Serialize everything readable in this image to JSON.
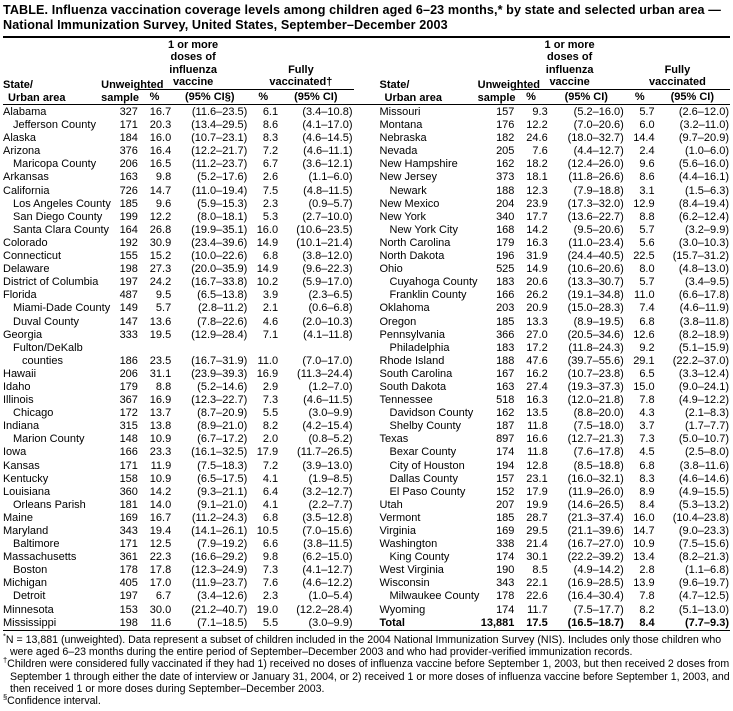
{
  "title": {
    "line1": "TABLE. Influenza vaccination coverage levels among children aged 6–23 months,* by state and selected urban area —",
    "line2": "National Immunization Survey, United States, September–December 2003"
  },
  "header": {
    "state_line1": "State/",
    "state_line2": "Urban area",
    "sample_line1": "Unweighted",
    "sample_line2": "sample",
    "flu_spanner": "1 or more doses of influenza vaccine",
    "fully_spanner_left": "Fully vaccinated†",
    "fully_spanner_right": "Fully vaccinated",
    "pct_label": "%",
    "ci_label_left": "(95% CI§)",
    "ci_label": "(95% CI)"
  },
  "left_rows": [
    {
      "name": "Alabama",
      "indent": 0,
      "sample": "327",
      "pct1": "16.7",
      "ci1": "(11.6–23.5)",
      "pct2": "6.1",
      "ci2": "(3.4–10.8)"
    },
    {
      "name": "Jefferson County",
      "indent": 1,
      "sample": "171",
      "pct1": "20.3",
      "ci1": "(13.4–29.5)",
      "pct2": "8.6",
      "ci2": "(4.1–17.0)"
    },
    {
      "name": "Alaska",
      "indent": 0,
      "sample": "184",
      "pct1": "16.0",
      "ci1": "(10.7–23.1)",
      "pct2": "8.3",
      "ci2": "(4.6–14.5)"
    },
    {
      "name": "Arizona",
      "indent": 0,
      "sample": "376",
      "pct1": "16.4",
      "ci1": "(12.2–21.7)",
      "pct2": "7.2",
      "ci2": "(4.6–11.1)"
    },
    {
      "name": "Maricopa County",
      "indent": 1,
      "sample": "206",
      "pct1": "16.5",
      "ci1": "(11.2–23.7)",
      "pct2": "6.7",
      "ci2": "(3.6–12.1)"
    },
    {
      "name": "Arkansas",
      "indent": 0,
      "sample": "163",
      "pct1": "9.8",
      "ci1": "(5.2–17.6)",
      "pct2": "2.6",
      "ci2": "(1.1–6.0)"
    },
    {
      "name": "California",
      "indent": 0,
      "sample": "726",
      "pct1": "14.7",
      "ci1": "(11.0–19.4)",
      "pct2": "7.5",
      "ci2": "(4.8–11.5)"
    },
    {
      "name": "Los Angeles County",
      "indent": 1,
      "sample": "185",
      "pct1": "9.6",
      "ci1": "(5.9–15.3)",
      "pct2": "2.3",
      "ci2": "(0.9–5.7)"
    },
    {
      "name": "San Diego County",
      "indent": 1,
      "sample": "199",
      "pct1": "12.2",
      "ci1": "(8.0–18.1)",
      "pct2": "5.3",
      "ci2": "(2.7–10.0)"
    },
    {
      "name": "Santa Clara County",
      "indent": 1,
      "sample": "164",
      "pct1": "26.8",
      "ci1": "(19.9–35.1)",
      "pct2": "16.0",
      "ci2": "(10.6–23.5)"
    },
    {
      "name": "Colorado",
      "indent": 0,
      "sample": "192",
      "pct1": "30.9",
      "ci1": "(23.4–39.6)",
      "pct2": "14.9",
      "ci2": "(10.1–21.4)"
    },
    {
      "name": "Connecticut",
      "indent": 0,
      "sample": "155",
      "pct1": "15.2",
      "ci1": "(10.0–22.6)",
      "pct2": "6.8",
      "ci2": "(3.8–12.0)"
    },
    {
      "name": "Delaware",
      "indent": 0,
      "sample": "198",
      "pct1": "27.3",
      "ci1": "(20.0–35.9)",
      "pct2": "14.9",
      "ci2": "(9.6–22.3)"
    },
    {
      "name": "District of Columbia",
      "indent": 0,
      "sample": "197",
      "pct1": "24.2",
      "ci1": "(16.7–33.8)",
      "pct2": "10.2",
      "ci2": "(5.9–17.0)"
    },
    {
      "name": "Florida",
      "indent": 0,
      "sample": "487",
      "pct1": "9.5",
      "ci1": "(6.5–13.8)",
      "pct2": "3.9",
      "ci2": "(2.3–6.5)"
    },
    {
      "name": "Miami-Dade County",
      "indent": 1,
      "sample": "149",
      "pct1": "5.7",
      "ci1": "(2.8–11.2)",
      "pct2": "2.1",
      "ci2": "(0.6–6.8)"
    },
    {
      "name": "Duval County",
      "indent": 1,
      "sample": "147",
      "pct1": "13.6",
      "ci1": "(7.8–22.6)",
      "pct2": "4.6",
      "ci2": "(2.0–10.3)"
    },
    {
      "name": "Georgia",
      "indent": 0,
      "sample": "333",
      "pct1": "19.5",
      "ci1": "(12.9–28.4)",
      "pct2": "7.1",
      "ci2": "(4.1–11.8)"
    },
    {
      "name": "Fulton/DeKalb",
      "indent": 1,
      "sample": "",
      "pct1": "",
      "ci1": "",
      "pct2": "",
      "ci2": ""
    },
    {
      "name": "counties",
      "indent": 2,
      "sample": "186",
      "pct1": "23.5",
      "ci1": "(16.7–31.9)",
      "pct2": "11.0",
      "ci2": "(7.0–17.0)"
    },
    {
      "name": "Hawaii",
      "indent": 0,
      "sample": "206",
      "pct1": "31.1",
      "ci1": "(23.9–39.3)",
      "pct2": "16.9",
      "ci2": "(11.3–24.4)"
    },
    {
      "name": "Idaho",
      "indent": 0,
      "sample": "179",
      "pct1": "8.8",
      "ci1": "(5.2–14.6)",
      "pct2": "2.9",
      "ci2": "(1.2–7.0)"
    },
    {
      "name": "Illinois",
      "indent": 0,
      "sample": "367",
      "pct1": "16.9",
      "ci1": "(12.3–22.7)",
      "pct2": "7.3",
      "ci2": "(4.6–11.5)"
    },
    {
      "name": "Chicago",
      "indent": 1,
      "sample": "172",
      "pct1": "13.7",
      "ci1": "(8.7–20.9)",
      "pct2": "5.5",
      "ci2": "(3.0–9.9)"
    },
    {
      "name": "Indiana",
      "indent": 0,
      "sample": "315",
      "pct1": "13.8",
      "ci1": "(8.9–21.0)",
      "pct2": "8.2",
      "ci2": "(4.2–15.4)"
    },
    {
      "name": "Marion County",
      "indent": 1,
      "sample": "148",
      "pct1": "10.9",
      "ci1": "(6.7–17.2)",
      "pct2": "2.0",
      "ci2": "(0.8–5.2)"
    },
    {
      "name": "Iowa",
      "indent": 0,
      "sample": "166",
      "pct1": "23.3",
      "ci1": "(16.1–32.5)",
      "pct2": "17.9",
      "ci2": "(11.7–26.5)"
    },
    {
      "name": "Kansas",
      "indent": 0,
      "sample": "171",
      "pct1": "11.9",
      "ci1": "(7.5–18.3)",
      "pct2": "7.2",
      "ci2": "(3.9–13.0)"
    },
    {
      "name": "Kentucky",
      "indent": 0,
      "sample": "158",
      "pct1": "10.9",
      "ci1": "(6.5–17.5)",
      "pct2": "4.1",
      "ci2": "(1.9–8.5)"
    },
    {
      "name": "Louisiana",
      "indent": 0,
      "sample": "360",
      "pct1": "14.2",
      "ci1": "(9.3–21.1)",
      "pct2": "6.4",
      "ci2": "(3.2–12.7)"
    },
    {
      "name": "Orleans Parish",
      "indent": 1,
      "sample": "181",
      "pct1": "14.0",
      "ci1": "(9.1–21.0)",
      "pct2": "4.1",
      "ci2": "(2.2–7.7)"
    },
    {
      "name": "Maine",
      "indent": 0,
      "sample": "169",
      "pct1": "16.7",
      "ci1": "(11.2–24.3)",
      "pct2": "6.8",
      "ci2": "(3.5–12.8)"
    },
    {
      "name": "Maryland",
      "indent": 0,
      "sample": "343",
      "pct1": "19.4",
      "ci1": "(14.1–26.1)",
      "pct2": "10.5",
      "ci2": "(7.0–15.6)"
    },
    {
      "name": "Baltimore",
      "indent": 1,
      "sample": "171",
      "pct1": "12.5",
      "ci1": "(7.9–19.2)",
      "pct2": "6.6",
      "ci2": "(3.8–11.5)"
    },
    {
      "name": "Massachusetts",
      "indent": 0,
      "sample": "361",
      "pct1": "22.3",
      "ci1": "(16.6–29.2)",
      "pct2": "9.8",
      "ci2": "(6.2–15.0)"
    },
    {
      "name": "Boston",
      "indent": 1,
      "sample": "178",
      "pct1": "17.8",
      "ci1": "(12.3–24.9)",
      "pct2": "7.3",
      "ci2": "(4.1–12.7)"
    },
    {
      "name": "Michigan",
      "indent": 0,
      "sample": "405",
      "pct1": "17.0",
      "ci1": "(11.9–23.7)",
      "pct2": "7.6",
      "ci2": "(4.6–12.2)"
    },
    {
      "name": "Detroit",
      "indent": 1,
      "sample": "197",
      "pct1": "6.7",
      "ci1": "(3.4–12.6)",
      "pct2": "2.3",
      "ci2": "(1.0–5.4)"
    },
    {
      "name": "Minnesota",
      "indent": 0,
      "sample": "153",
      "pct1": "30.0",
      "ci1": "(21.2–40.7)",
      "pct2": "19.0",
      "ci2": "(12.2–28.4)"
    },
    {
      "name": "Mississippi",
      "indent": 0,
      "sample": "198",
      "pct1": "11.6",
      "ci1": "(7.1–18.5)",
      "pct2": "5.5",
      "ci2": "(3.0–9.9)"
    }
  ],
  "right_rows": [
    {
      "name": "Missouri",
      "indent": 0,
      "sample": "157",
      "pct1": "9.3",
      "ci1": "(5.2–16.0)",
      "pct2": "5.7",
      "ci2": "(2.6–12.0)"
    },
    {
      "name": "Montana",
      "indent": 0,
      "sample": "176",
      "pct1": "12.2",
      "ci1": "(7.0–20.6)",
      "pct2": "6.0",
      "ci2": "(3.2–11.0)"
    },
    {
      "name": "Nebraska",
      "indent": 0,
      "sample": "182",
      "pct1": "24.6",
      "ci1": "(18.0–32.7)",
      "pct2": "14.4",
      "ci2": "(9.7–20.9)"
    },
    {
      "name": "Nevada",
      "indent": 0,
      "sample": "205",
      "pct1": "7.6",
      "ci1": "(4.4–12.7)",
      "pct2": "2.4",
      "ci2": "(1.0–6.0)"
    },
    {
      "name": "New Hampshire",
      "indent": 0,
      "sample": "162",
      "pct1": "18.2",
      "ci1": "(12.4–26.0)",
      "pct2": "9.6",
      "ci2": "(5.6–16.0)"
    },
    {
      "name": "New Jersey",
      "indent": 0,
      "sample": "373",
      "pct1": "18.1",
      "ci1": "(11.8–26.6)",
      "pct2": "8.6",
      "ci2": "(4.4–16.1)"
    },
    {
      "name": "Newark",
      "indent": 1,
      "sample": "188",
      "pct1": "12.3",
      "ci1": "(7.9–18.8)",
      "pct2": "3.1",
      "ci2": "(1.5–6.3)"
    },
    {
      "name": "New Mexico",
      "indent": 0,
      "sample": "204",
      "pct1": "23.9",
      "ci1": "(17.3–32.0)",
      "pct2": "12.9",
      "ci2": "(8.4–19.4)"
    },
    {
      "name": "New York",
      "indent": 0,
      "sample": "340",
      "pct1": "17.7",
      "ci1": "(13.6–22.7)",
      "pct2": "8.8",
      "ci2": "(6.2–12.4)"
    },
    {
      "name": "New York City",
      "indent": 1,
      "sample": "168",
      "pct1": "14.2",
      "ci1": "(9.5–20.6)",
      "pct2": "5.7",
      "ci2": "(3.2–9.9)"
    },
    {
      "name": "North Carolina",
      "indent": 0,
      "sample": "179",
      "pct1": "16.3",
      "ci1": "(11.0–23.4)",
      "pct2": "5.6",
      "ci2": "(3.0–10.3)"
    },
    {
      "name": "North Dakota",
      "indent": 0,
      "sample": "196",
      "pct1": "31.9",
      "ci1": "(24.4–40.5)",
      "pct2": "22.5",
      "ci2": "(15.7–31.2)"
    },
    {
      "name": "Ohio",
      "indent": 0,
      "sample": "525",
      "pct1": "14.9",
      "ci1": "(10.6–20.6)",
      "pct2": "8.0",
      "ci2": "(4.8–13.0)"
    },
    {
      "name": "Cuyahoga County",
      "indent": 1,
      "sample": "183",
      "pct1": "20.6",
      "ci1": "(13.3–30.7)",
      "pct2": "5.7",
      "ci2": "(3.4–9.5)"
    },
    {
      "name": "Franklin County",
      "indent": 1,
      "sample": "166",
      "pct1": "26.2",
      "ci1": "(19.1–34.8)",
      "pct2": "11.0",
      "ci2": "(6.6–17.8)"
    },
    {
      "name": "Oklahoma",
      "indent": 0,
      "sample": "203",
      "pct1": "20.9",
      "ci1": "(15.0–28.3)",
      "pct2": "7.4",
      "ci2": "(4.6–11.9)"
    },
    {
      "name": "Oregon",
      "indent": 0,
      "sample": "185",
      "pct1": "13.3",
      "ci1": "(8.9–19.5)",
      "pct2": "6.8",
      "ci2": "(3.8–11.8)"
    },
    {
      "name": "Pennsylvania",
      "indent": 0,
      "sample": "366",
      "pct1": "27.0",
      "ci1": "(20.5–34.6)",
      "pct2": "12.6",
      "ci2": "(8.2–18.9)"
    },
    {
      "name": "Philadelphia",
      "indent": 1,
      "sample": "183",
      "pct1": "17.2",
      "ci1": "(11.8–24.3)",
      "pct2": "9.2",
      "ci2": "(5.1–15.9)"
    },
    {
      "name": "Rhode Island",
      "indent": 0,
      "sample": "188",
      "pct1": "47.6",
      "ci1": "(39.7–55.6)",
      "pct2": "29.1",
      "ci2": "(22.2–37.0)"
    },
    {
      "name": "South Carolina",
      "indent": 0,
      "sample": "167",
      "pct1": "16.2",
      "ci1": "(10.7–23.8)",
      "pct2": "6.5",
      "ci2": "(3.3–12.4)"
    },
    {
      "name": "South Dakota",
      "indent": 0,
      "sample": "163",
      "pct1": "27.4",
      "ci1": "(19.3–37.3)",
      "pct2": "15.0",
      "ci2": "(9.0–24.1)"
    },
    {
      "name": "Tennessee",
      "indent": 0,
      "sample": "518",
      "pct1": "16.3",
      "ci1": "(12.0–21.8)",
      "pct2": "7.8",
      "ci2": "(4.9–12.2)"
    },
    {
      "name": "Davidson County",
      "indent": 1,
      "sample": "162",
      "pct1": "13.5",
      "ci1": "(8.8–20.0)",
      "pct2": "4.3",
      "ci2": "(2.1–8.3)"
    },
    {
      "name": "Shelby County",
      "indent": 1,
      "sample": "187",
      "pct1": "11.8",
      "ci1": "(7.5–18.0)",
      "pct2": "3.7",
      "ci2": "(1.7–7.7)"
    },
    {
      "name": "Texas",
      "indent": 0,
      "sample": "897",
      "pct1": "16.6",
      "ci1": "(12.7–21.3)",
      "pct2": "7.3",
      "ci2": "(5.0–10.7)"
    },
    {
      "name": "Bexar County",
      "indent": 1,
      "sample": "174",
      "pct1": "11.8",
      "ci1": "(7.6–17.8)",
      "pct2": "4.5",
      "ci2": "(2.5–8.0)"
    },
    {
      "name": "City of Houston",
      "indent": 1,
      "sample": "194",
      "pct1": "12.8",
      "ci1": "(8.5–18.8)",
      "pct2": "6.8",
      "ci2": "(3.8–11.6)"
    },
    {
      "name": "Dallas County",
      "indent": 1,
      "sample": "157",
      "pct1": "23.1",
      "ci1": "(16.0–32.1)",
      "pct2": "8.3",
      "ci2": "(4.6–14.6)"
    },
    {
      "name": "El Paso County",
      "indent": 1,
      "sample": "152",
      "pct1": "17.9",
      "ci1": "(11.9–26.0)",
      "pct2": "8.9",
      "ci2": "(4.9–15.5)"
    },
    {
      "name": "Utah",
      "indent": 0,
      "sample": "207",
      "pct1": "19.9",
      "ci1": "(14.6–26.5)",
      "pct2": "8.4",
      "ci2": "(5.3–13.2)"
    },
    {
      "name": "Vermont",
      "indent": 0,
      "sample": "185",
      "pct1": "28.7",
      "ci1": "(21.3–37.4)",
      "pct2": "16.0",
      "ci2": "(10.4–23.8)"
    },
    {
      "name": "Virginia",
      "indent": 0,
      "sample": "169",
      "pct1": "29.5",
      "ci1": "(21.1–39.6)",
      "pct2": "14.7",
      "ci2": "(9.0–23.3)"
    },
    {
      "name": "Washington",
      "indent": 0,
      "sample": "338",
      "pct1": "21.4",
      "ci1": "(16.7–27.0)",
      "pct2": "10.9",
      "ci2": "(7.5–15.6)"
    },
    {
      "name": "King County",
      "indent": 1,
      "sample": "174",
      "pct1": "30.1",
      "ci1": "(22.2–39.2)",
      "pct2": "13.4",
      "ci2": "(8.2–21.3)"
    },
    {
      "name": "West Virginia",
      "indent": 0,
      "sample": "190",
      "pct1": "8.5",
      "ci1": "(4.9–14.2)",
      "pct2": "2.8",
      "ci2": "(1.1–6.8)"
    },
    {
      "name": "Wisconsin",
      "indent": 0,
      "sample": "343",
      "pct1": "22.1",
      "ci1": "(16.9–28.5)",
      "pct2": "13.9",
      "ci2": "(9.6–19.7)"
    },
    {
      "name": "Milwaukee County",
      "indent": 1,
      "sample": "178",
      "pct1": "22.6",
      "ci1": "(16.4–30.4)",
      "pct2": "7.8",
      "ci2": "(4.7–12.5)"
    },
    {
      "name": "Wyoming",
      "indent": 0,
      "sample": "174",
      "pct1": "11.7",
      "ci1": "(7.5–17.7)",
      "pct2": "8.2",
      "ci2": "(5.1–13.0)"
    },
    {
      "name": "Total",
      "indent": 0,
      "bold": true,
      "sample": "13,881",
      "pct1": "17.5",
      "ci1": "(16.5–18.7)",
      "pct2": "8.4",
      "ci2": "(7.7–9.3)"
    }
  ],
  "footnotes": [
    {
      "marker": "*",
      "text": "N = 13,881 (unweighted). Data represent a subset of children included in the 2004 National Immunization Survey (NIS). Includes only those children who were aged 6–23 months during the entire period of September–December 2003 and who had provider-verified immunization records."
    },
    {
      "marker": "†",
      "text": "Children were considered fully vaccinated if they had 1) received no doses of influenza vaccine before September 1, 2003, but then received 2 doses from September 1 through either the date of interview or January 31, 2004, or 2) received 1 or more doses of influenza vaccine before September 1, 2003, and then received 1 or more doses during September–December 2003."
    },
    {
      "marker": "§",
      "text": "Confidence interval."
    }
  ]
}
